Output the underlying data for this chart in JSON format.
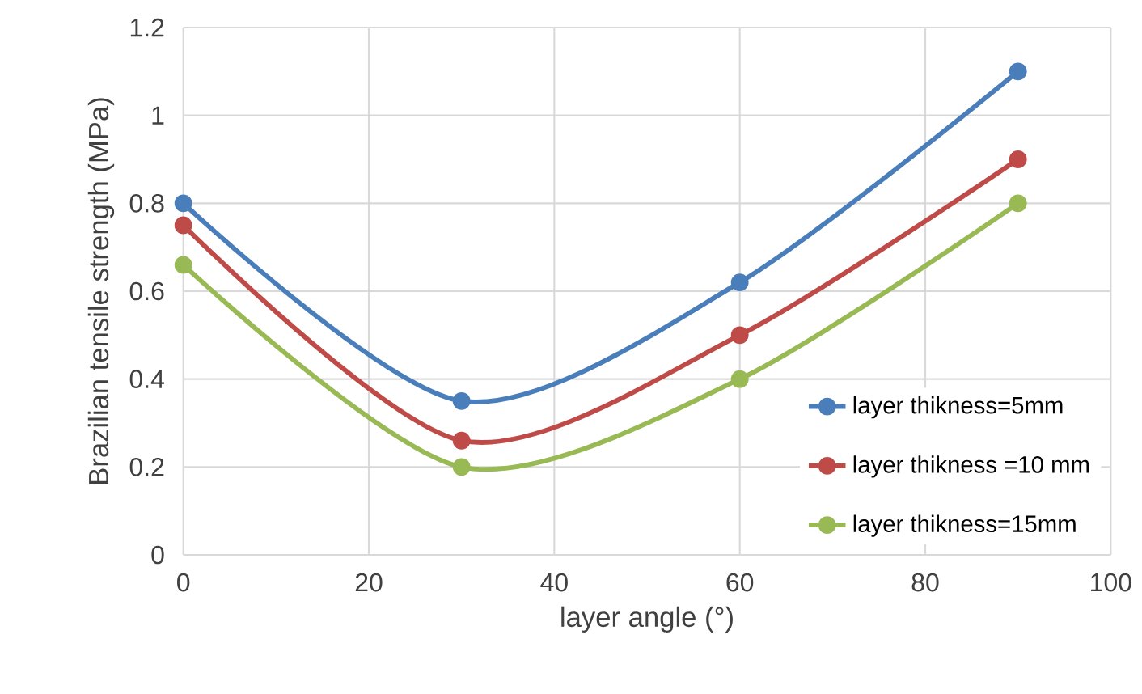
{
  "chart_data": {
    "type": "line",
    "xlabel": "layer angle (°)",
    "ylabel": "Brazilian tensile strength (MPa)",
    "x": [
      0,
      30,
      60,
      90
    ],
    "series": [
      {
        "name": "layer thikness=5mm",
        "color": "#4a7ebb",
        "values": [
          0.8,
          0.35,
          0.62,
          1.1
        ]
      },
      {
        "name": "layer thikness =10 mm",
        "color": "#be4b48",
        "values": [
          0.75,
          0.26,
          0.5,
          0.9
        ]
      },
      {
        "name": "layer thikness=15mm",
        "color": "#98b954",
        "values": [
          0.66,
          0.2,
          0.4,
          0.8
        ]
      }
    ],
    "xlim": [
      0,
      100
    ],
    "xticks": [
      0,
      20,
      40,
      60,
      80,
      100
    ],
    "ylim": [
      0,
      1.2
    ],
    "yticks": [
      0,
      0.2,
      0.4,
      0.6,
      0.8,
      1,
      1.2
    ],
    "grid": true,
    "legend": "bottom right",
    "marker": "circle",
    "line_style": "solid"
  }
}
